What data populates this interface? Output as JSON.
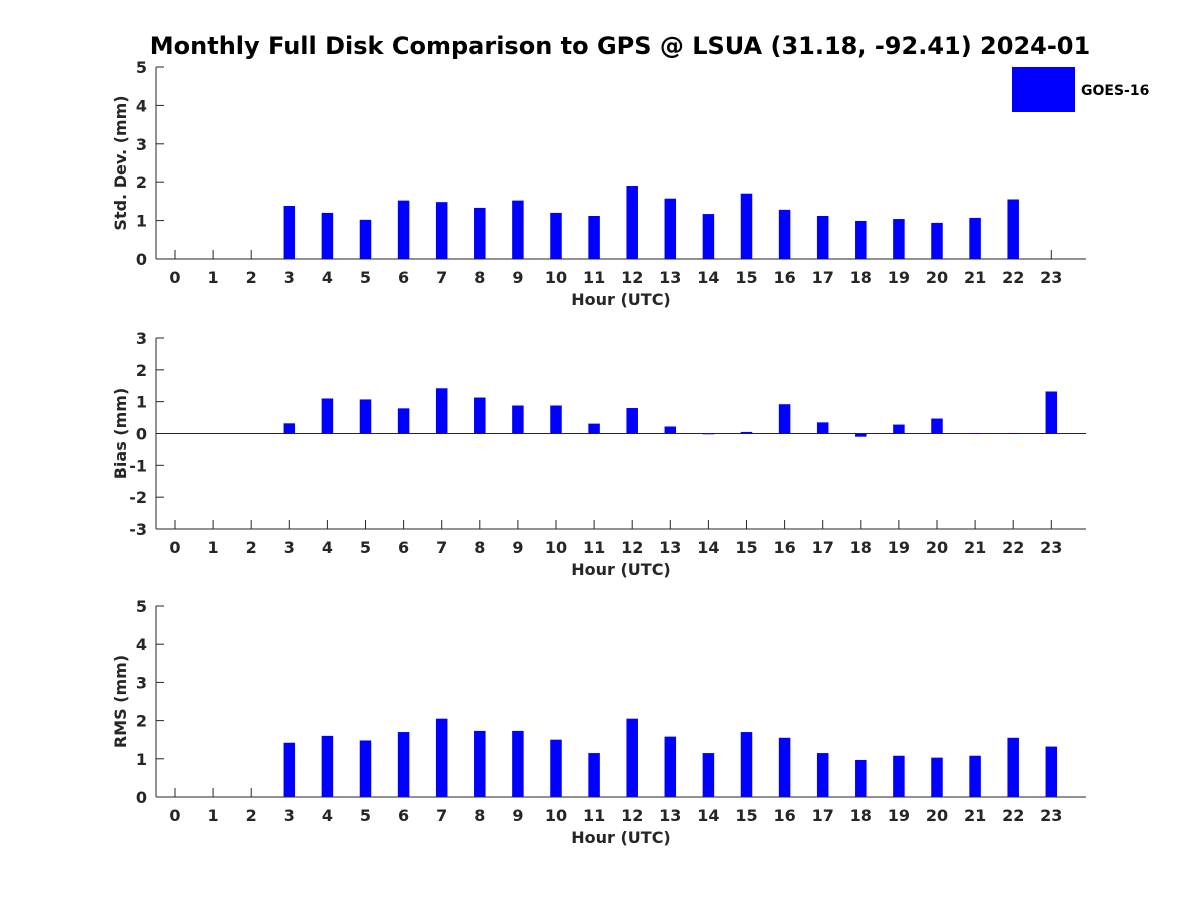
{
  "figure": {
    "title": "Monthly Full Disk Comparison to GPS @ LSUA (31.18, -92.41) 2024-01",
    "legend": {
      "label": "GOES-16",
      "color": "#0000ff",
      "placement": "top-right"
    }
  },
  "chart_data": [
    {
      "type": "bar",
      "ylabel": "Std. Dev. (mm)",
      "xlabel": "Hour (UTC)",
      "ylim": [
        0,
        5
      ],
      "yticks": [
        "0",
        "1",
        "2",
        "3",
        "4",
        "5"
      ],
      "categories": [
        "0",
        "1",
        "2",
        "3",
        "4",
        "5",
        "6",
        "7",
        "8",
        "9",
        "10",
        "11",
        "12",
        "13",
        "14",
        "15",
        "16",
        "17",
        "18",
        "19",
        "20",
        "21",
        "22",
        "23"
      ],
      "series": [
        {
          "name": "GOES-16",
          "color": "#0000ff",
          "values": [
            null,
            null,
            null,
            1.38,
            1.2,
            1.02,
            1.52,
            1.48,
            1.33,
            1.52,
            1.2,
            1.12,
            1.9,
            1.57,
            1.17,
            1.7,
            1.28,
            1.12,
            0.99,
            1.04,
            0.94,
            1.07,
            1.55,
            null
          ]
        }
      ]
    },
    {
      "type": "bar",
      "ylabel": "Bias (mm)",
      "xlabel": "Hour (UTC)",
      "ylim": [
        -3,
        3
      ],
      "yticks": [
        "-3",
        "-2",
        "-1",
        "0",
        "1",
        "2",
        "3"
      ],
      "categories": [
        "0",
        "1",
        "2",
        "3",
        "4",
        "5",
        "6",
        "7",
        "8",
        "9",
        "10",
        "11",
        "12",
        "13",
        "14",
        "15",
        "16",
        "17",
        "18",
        "19",
        "20",
        "21",
        "22",
        "23"
      ],
      "series": [
        {
          "name": "GOES-16",
          "color": "#0000ff",
          "values": [
            null,
            null,
            null,
            0.32,
            1.1,
            1.07,
            0.79,
            1.42,
            1.13,
            0.88,
            0.88,
            0.31,
            0.8,
            0.22,
            -0.01,
            0.05,
            0.92,
            0.35,
            -0.1,
            0.28,
            0.47,
            0.01,
            0.01,
            1.32
          ]
        }
      ]
    },
    {
      "type": "bar",
      "ylabel": "RMS (mm)",
      "xlabel": "Hour (UTC)",
      "ylim": [
        0,
        5
      ],
      "yticks": [
        "0",
        "1",
        "2",
        "3",
        "4",
        "5"
      ],
      "categories": [
        "0",
        "1",
        "2",
        "3",
        "4",
        "5",
        "6",
        "7",
        "8",
        "9",
        "10",
        "11",
        "12",
        "13",
        "14",
        "15",
        "16",
        "17",
        "18",
        "19",
        "20",
        "21",
        "22",
        "23"
      ],
      "series": [
        {
          "name": "GOES-16",
          "color": "#0000ff",
          "values": [
            null,
            null,
            null,
            1.42,
            1.6,
            1.48,
            1.7,
            2.05,
            1.73,
            1.73,
            1.5,
            1.15,
            2.05,
            1.58,
            1.15,
            1.7,
            1.55,
            1.15,
            0.97,
            1.08,
            1.03,
            1.08,
            1.55,
            1.32
          ]
        }
      ]
    }
  ]
}
